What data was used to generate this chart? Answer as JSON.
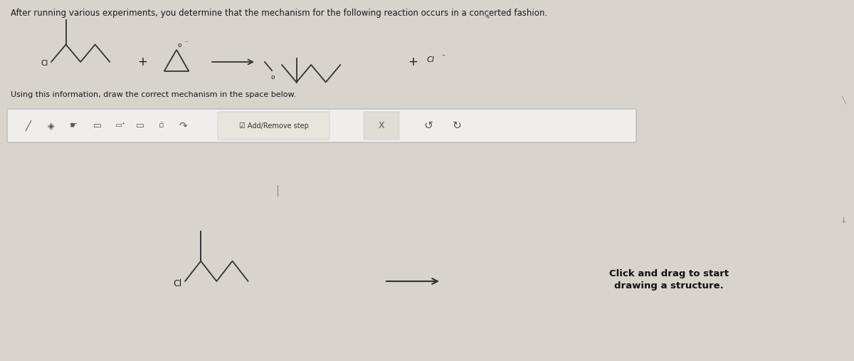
{
  "bg_color": "#d8d4cc",
  "content_bg": "#e8e4dc",
  "title_text": "After running various experiments, you determine that the mechanism for the following reaction occurs in a concerted fashion.",
  "subtitle_text": "Using this information, draw the correct mechanism in the space below.",
  "click_text": "Click and drag to start\ndrawing a structure.",
  "toolbar_bg": "#f0eeeb",
  "toolbar_border": "#bbbbbb",
  "text_color": "#1a1a1a",
  "line_color": "#333333",
  "title_fontsize": 8.5,
  "subtitle_fontsize": 8.0,
  "click_fontsize": 9.5,
  "add_remove_text": "Add/Remove step"
}
